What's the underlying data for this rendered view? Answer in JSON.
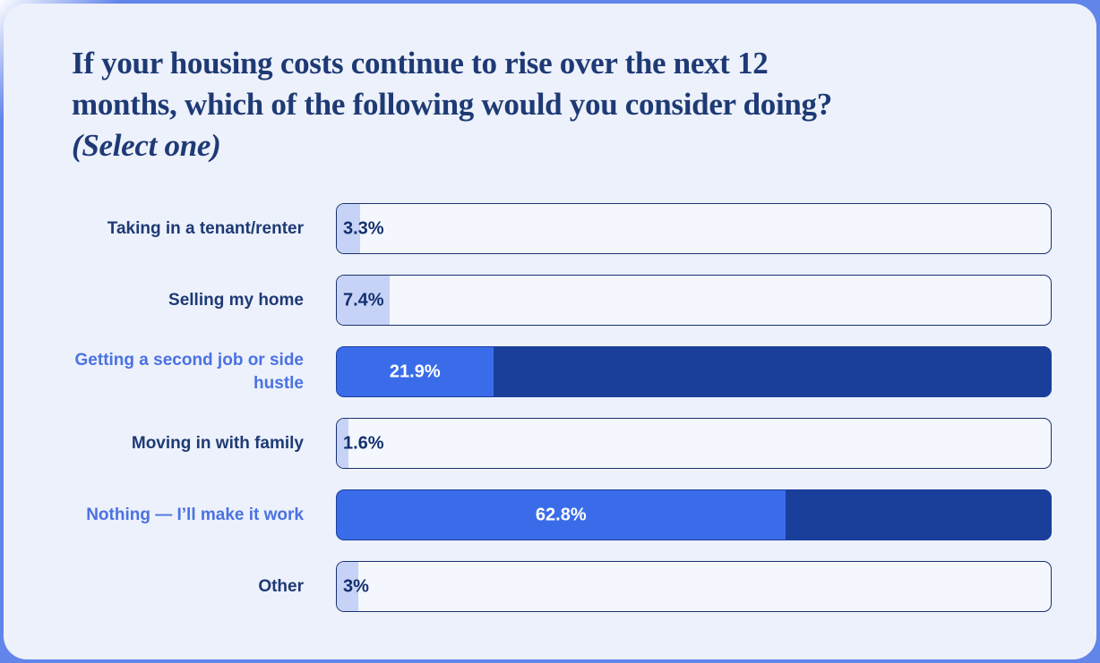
{
  "card": {
    "title_lines": [
      "If your housing costs continue to rise over the next 12",
      "months, which of the following would you consider doing?"
    ],
    "title_note": "(Select one)"
  },
  "chart_data": {
    "type": "bar",
    "orientation": "horizontal",
    "title": "If your housing costs continue to rise over the next 12 months, which of the following would you consider doing? (Select one)",
    "categories": [
      "Taking in a tenant/renter",
      "Selling my home",
      "Getting a second job or side hustle",
      "Moving in with family",
      "Nothing — I’ll make it work",
      "Other"
    ],
    "values": [
      3.3,
      7.4,
      21.9,
      1.6,
      62.8,
      3
    ],
    "value_labels": [
      "3.3%",
      "7.4%",
      "21.9%",
      "1.6%",
      "62.8%",
      "3%"
    ],
    "highlighted": [
      false,
      false,
      true,
      false,
      true,
      false
    ],
    "xlim": [
      0,
      100
    ],
    "grid": false,
    "legend": "none",
    "colors": {
      "page_bg": "#6285ea",
      "card_bg": "#edf1fb",
      "track": "#f4f7fe",
      "bar_border": "#1a316e",
      "muted_fill": "#c6d3f7",
      "highlight_fill": "#3a6cea",
      "highlight_remainder": "#1a3f9b",
      "label_navy": "#1e3a75",
      "label_highlight": "#4a72e2",
      "value_text_dark": "#13306e",
      "value_text_light": "#ffffff"
    }
  }
}
